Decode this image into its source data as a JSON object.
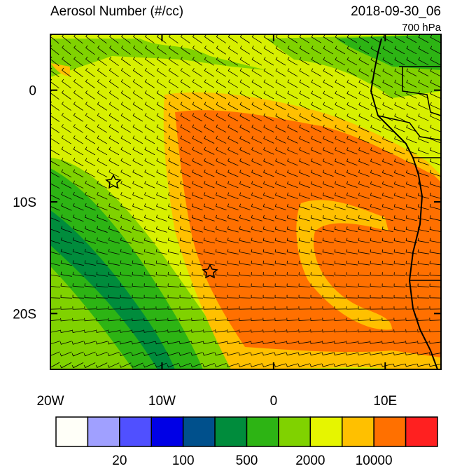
{
  "header": {
    "title": "Aerosol Number (#/cc)",
    "time": "2018-09-30_06",
    "level": "700 hPa"
  },
  "map": {
    "lonlim": [
      -20,
      15
    ],
    "latlim": [
      -25,
      5
    ],
    "lon_ticks": [
      {
        "value": -20,
        "label": "20W"
      },
      {
        "value": -10,
        "label": "10W"
      },
      {
        "value": 0,
        "label": "0"
      },
      {
        "value": 10,
        "label": "10E"
      }
    ],
    "lat_ticks": [
      {
        "value": 0,
        "label": "0"
      },
      {
        "value": -10,
        "label": "10S"
      },
      {
        "value": -20,
        "label": "20S"
      }
    ]
  },
  "colorbar": {
    "colors": [
      "#fffff8",
      "#a0a0ff",
      "#5050ff",
      "#0000e6",
      "#00508c",
      "#008c3c",
      "#2db414",
      "#80d200",
      "#e6f500",
      "#ffc000",
      "#ff7000",
      "#ff2020"
    ],
    "labels": [
      "20",
      "100",
      "500",
      "2000",
      "10000"
    ]
  }
}
